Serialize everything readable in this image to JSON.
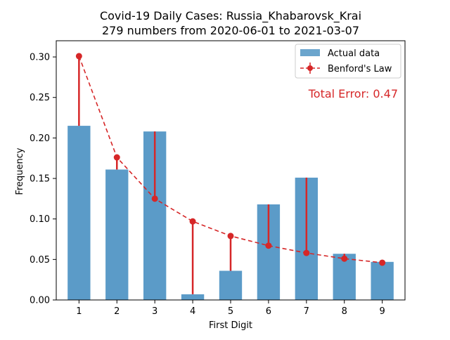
{
  "chart_data": {
    "type": "bar",
    "title_line1": "Covid-19 Daily Cases: Russia_Khabarovsk_Krai",
    "title_line2": "279 numbers from 2020-06-01 to 2021-03-07",
    "xlabel": "First Digit",
    "ylabel": "Frequency",
    "categories": [
      "1",
      "2",
      "3",
      "4",
      "5",
      "6",
      "7",
      "8",
      "9"
    ],
    "ylim": [
      0,
      0.32
    ],
    "yticks": [
      "0.00",
      "0.05",
      "0.10",
      "0.15",
      "0.20",
      "0.25",
      "0.30"
    ],
    "series": [
      {
        "name": "Actual data",
        "kind": "bar",
        "color": "#5b9bc8",
        "values": [
          0.215,
          0.161,
          0.208,
          0.007,
          0.036,
          0.118,
          0.151,
          0.057,
          0.047
        ]
      },
      {
        "name": "Benford's Law",
        "kind": "line-dashed-markers",
        "color": "#d62728",
        "values": [
          0.301,
          0.176,
          0.125,
          0.097,
          0.079,
          0.067,
          0.058,
          0.051,
          0.046
        ]
      }
    ],
    "annotation": "Total Error: 0.47",
    "annotation_color": "#d62728",
    "legend_position": "top-right",
    "grid": false
  }
}
